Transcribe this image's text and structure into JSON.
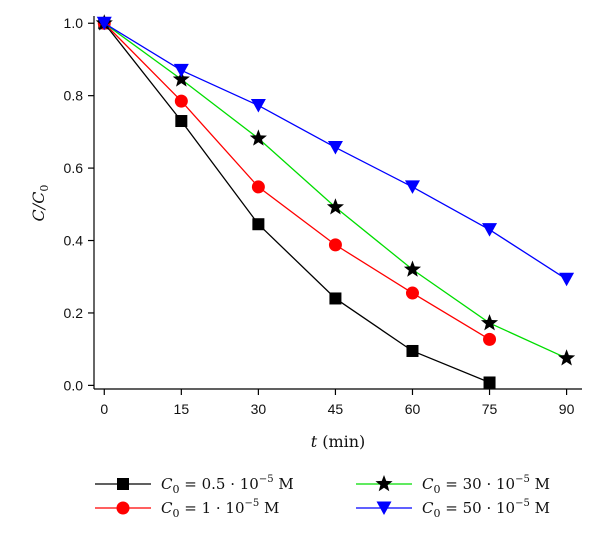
{
  "chart_data": {
    "type": "line",
    "title": "",
    "xlabel": {
      "italic": "t",
      "rest": " (min)"
    },
    "ylabel": {
      "main": "C/C",
      "sub": "0"
    },
    "xlim": [
      -2,
      93
    ],
    "ylim": [
      -0.01,
      1.02
    ],
    "xticks": [
      0,
      15,
      30,
      45,
      60,
      75,
      90
    ],
    "yticks": [
      "0.0",
      "0.2",
      "0.4",
      "0.6",
      "0.8",
      "1.0"
    ],
    "grid": false,
    "legend_position": "bottom",
    "series": [
      {
        "name": {
          "pre": "C",
          "sub": "0",
          "mid": " = 0.5 · 10",
          "sup": "−5",
          "post": " M"
        },
        "color": "#000000",
        "marker": "square",
        "x": [
          0,
          15,
          30,
          45,
          60,
          75
        ],
        "y": [
          1.0,
          0.73,
          0.445,
          0.24,
          0.095,
          0.008
        ]
      },
      {
        "name": {
          "pre": "C",
          "sub": "0",
          "mid": " = 1 · 10",
          "sup": "−5",
          "post": " M"
        },
        "color": "#ff0000",
        "marker": "circle",
        "x": [
          0,
          15,
          30,
          45,
          60,
          75
        ],
        "y": [
          1.0,
          0.785,
          0.548,
          0.388,
          0.255,
          0.127
        ]
      },
      {
        "name": {
          "pre": "C",
          "sub": "0",
          "mid": " = 30 · 10",
          "sup": "−5",
          "post": " M"
        },
        "color": "#00dd00",
        "marker": "star",
        "x": [
          0,
          15,
          30,
          45,
          60,
          75,
          90
        ],
        "y": [
          1.0,
          0.845,
          0.682,
          0.492,
          0.32,
          0.172,
          0.075
        ]
      },
      {
        "name": {
          "pre": "C",
          "sub": "0",
          "mid": " = 50 · 10",
          "sup": "−5",
          "post": " M"
        },
        "color": "#0000ff",
        "marker": "triangle-down",
        "x": [
          0,
          15,
          30,
          45,
          60,
          75,
          90
        ],
        "y": [
          1.0,
          0.87,
          0.773,
          0.657,
          0.548,
          0.43,
          0.293
        ]
      }
    ]
  }
}
